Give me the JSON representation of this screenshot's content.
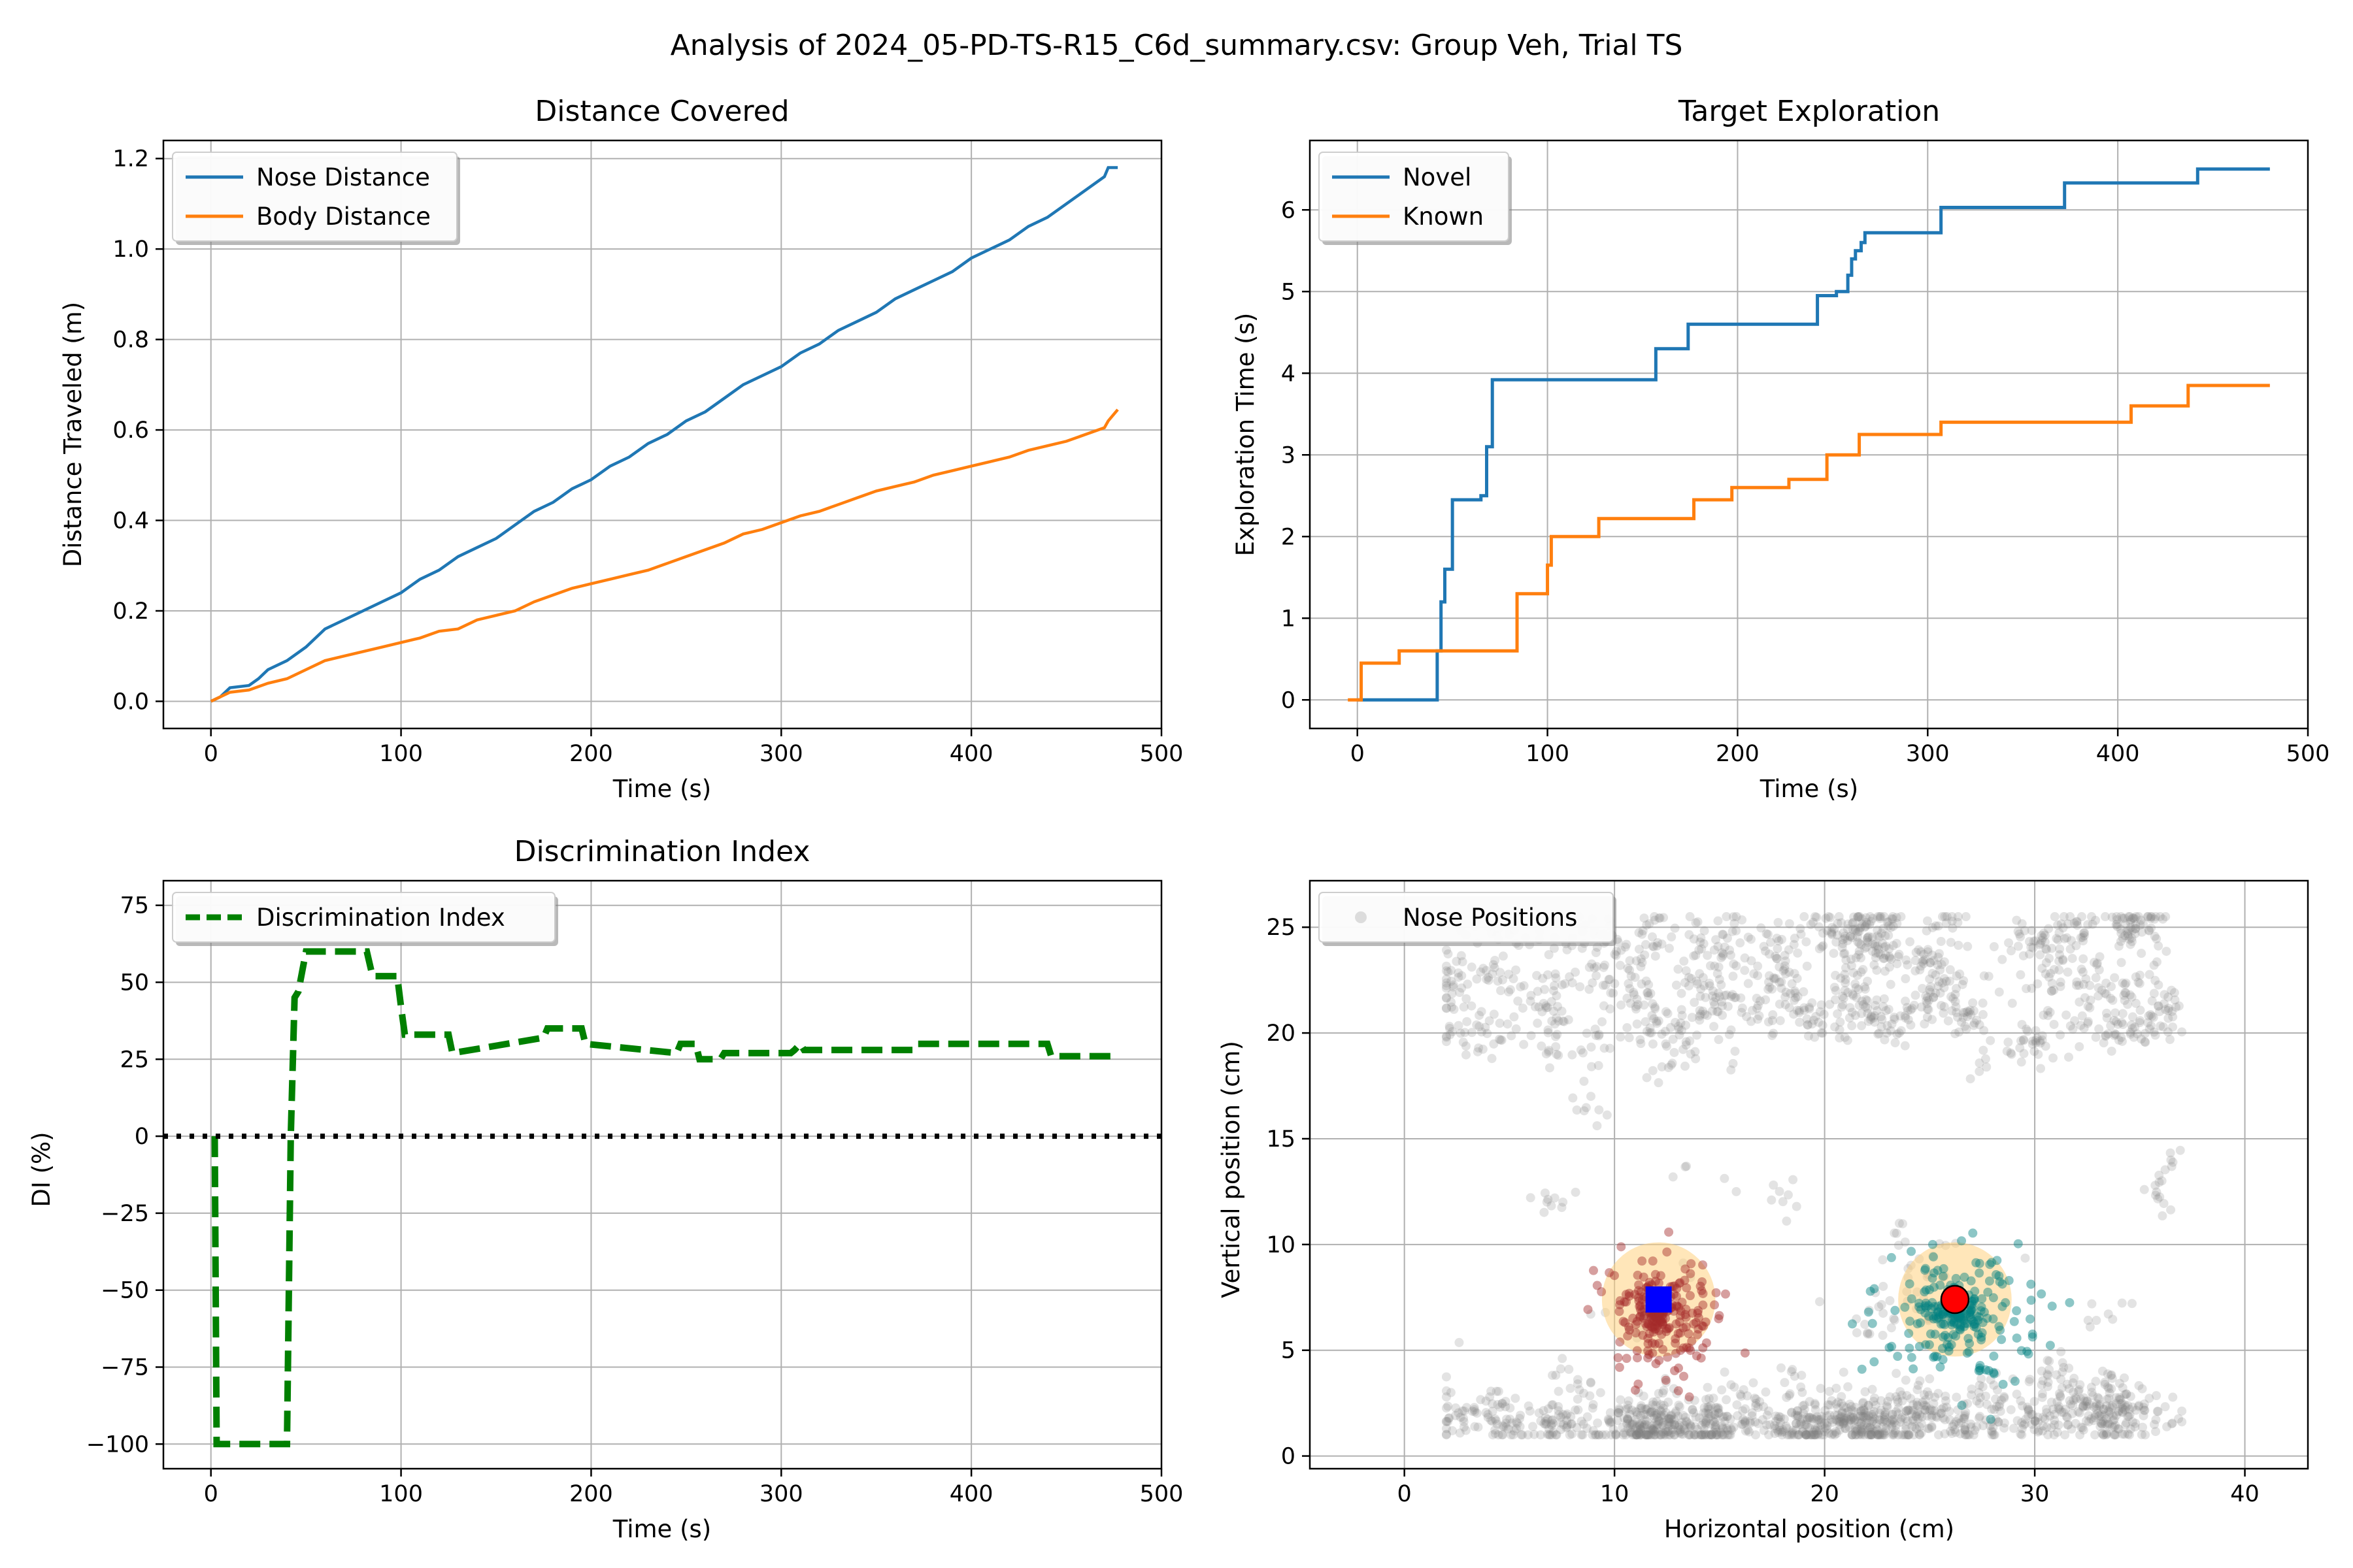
{
  "figure": {
    "suptitle": "Analysis of 2024_05-PD-TS-R15_C6d_summary.csv: Group Veh, Trial TS"
  },
  "colors": {
    "blue": "#1f77b4",
    "orange": "#ff7f0e",
    "green": "#008000",
    "gray": "#808080",
    "darkred": "#a52a2a",
    "teal": "#008080",
    "zone": "#ffd27f",
    "marker_square": "#0000ff",
    "marker_circle": "#ff0000"
  },
  "chart_data": [
    {
      "id": "distance",
      "type": "line",
      "title": "Distance Covered",
      "xlabel": "Time (s)",
      "ylabel": "Distance Traveled (m)",
      "xlim": [
        -25,
        500
      ],
      "ylim": [
        -0.06,
        1.24
      ],
      "xticks": [
        0,
        100,
        200,
        300,
        400,
        500
      ],
      "yticks": [
        0.0,
        0.2,
        0.4,
        0.6,
        0.8,
        1.0,
        1.2
      ],
      "ytick_format": 1,
      "grid": true,
      "legend": "upper-left",
      "series": [
        {
          "name": "Nose Distance",
          "color": "#1f77b4",
          "x": [
            0,
            5,
            10,
            20,
            25,
            30,
            40,
            50,
            60,
            70,
            80,
            90,
            100,
            110,
            120,
            130,
            140,
            150,
            160,
            170,
            180,
            190,
            200,
            210,
            220,
            230,
            240,
            250,
            260,
            270,
            280,
            290,
            300,
            310,
            320,
            330,
            340,
            350,
            360,
            370,
            380,
            390,
            400,
            410,
            420,
            430,
            440,
            450,
            460,
            470,
            472,
            477
          ],
          "y": [
            0.0,
            0.01,
            0.03,
            0.035,
            0.05,
            0.07,
            0.09,
            0.12,
            0.16,
            0.18,
            0.2,
            0.22,
            0.24,
            0.27,
            0.29,
            0.32,
            0.34,
            0.36,
            0.39,
            0.42,
            0.44,
            0.47,
            0.49,
            0.52,
            0.54,
            0.57,
            0.59,
            0.62,
            0.64,
            0.67,
            0.7,
            0.72,
            0.74,
            0.77,
            0.79,
            0.82,
            0.84,
            0.86,
            0.89,
            0.91,
            0.93,
            0.95,
            0.98,
            1.0,
            1.02,
            1.05,
            1.07,
            1.1,
            1.13,
            1.16,
            1.18,
            1.18
          ]
        },
        {
          "name": "Body Distance",
          "color": "#ff7f0e",
          "x": [
            0,
            10,
            20,
            30,
            40,
            50,
            60,
            70,
            80,
            90,
            100,
            110,
            120,
            130,
            140,
            150,
            160,
            170,
            180,
            190,
            200,
            210,
            220,
            230,
            240,
            250,
            260,
            270,
            280,
            290,
            300,
            310,
            320,
            330,
            340,
            350,
            360,
            370,
            380,
            390,
            400,
            410,
            420,
            430,
            440,
            450,
            460,
            470,
            472,
            477
          ],
          "y": [
            0.0,
            0.02,
            0.025,
            0.04,
            0.05,
            0.07,
            0.09,
            0.1,
            0.11,
            0.12,
            0.13,
            0.14,
            0.155,
            0.16,
            0.18,
            0.19,
            0.2,
            0.22,
            0.235,
            0.25,
            0.26,
            0.27,
            0.28,
            0.29,
            0.305,
            0.32,
            0.335,
            0.35,
            0.37,
            0.38,
            0.395,
            0.41,
            0.42,
            0.435,
            0.45,
            0.465,
            0.475,
            0.485,
            0.5,
            0.51,
            0.52,
            0.53,
            0.54,
            0.555,
            0.565,
            0.575,
            0.59,
            0.605,
            0.62,
            0.645
          ]
        }
      ]
    },
    {
      "id": "exploration",
      "type": "line",
      "title": "Target Exploration",
      "xlabel": "Time (s)",
      "ylabel": "Exploration Time (s)",
      "xlim": [
        -25,
        500
      ],
      "ylim": [
        -0.35,
        6.85
      ],
      "xticks": [
        0,
        100,
        200,
        300,
        400,
        500
      ],
      "yticks": [
        0,
        1,
        2,
        3,
        4,
        5,
        6
      ],
      "ytick_format": 0,
      "grid": true,
      "legend": "upper-left",
      "series": [
        {
          "name": "Novel",
          "color": "#1f77b4",
          "step": true,
          "x": [
            0,
            40,
            42,
            44,
            46,
            50,
            55,
            58,
            65,
            68,
            71,
            155,
            157,
            172,
            174,
            240,
            242,
            250,
            252,
            258,
            260,
            262,
            265,
            267,
            305,
            307,
            370,
            372,
            440,
            442,
            480
          ],
          "y": [
            0,
            0,
            0.6,
            1.2,
            1.6,
            2.45,
            2.45,
            2.45,
            2.5,
            3.1,
            3.92,
            3.92,
            4.3,
            4.3,
            4.6,
            4.6,
            4.95,
            4.95,
            5.0,
            5.2,
            5.4,
            5.5,
            5.6,
            5.72,
            5.72,
            6.03,
            6.03,
            6.33,
            6.33,
            6.5,
            6.5
          ]
        },
        {
          "name": "Known",
          "color": "#ff7f0e",
          "step": true,
          "x": [
            -5,
            0,
            2,
            20,
            22,
            82,
            84,
            98,
            100,
            102,
            125,
            127,
            175,
            177,
            195,
            197,
            210,
            212,
            225,
            227,
            245,
            247,
            262,
            264,
            305,
            307,
            405,
            407,
            435,
            437,
            480
          ],
          "y": [
            0,
            0,
            0.45,
            0.45,
            0.6,
            0.6,
            1.3,
            1.3,
            1.65,
            2.0,
            2.0,
            2.22,
            2.22,
            2.45,
            2.45,
            2.6,
            2.6,
            2.6,
            2.6,
            2.7,
            2.7,
            3.0,
            3.0,
            3.25,
            3.25,
            3.4,
            3.4,
            3.6,
            3.6,
            3.85,
            3.85
          ]
        }
      ]
    },
    {
      "id": "di",
      "type": "line",
      "title": "Discrimination Index",
      "xlabel": "Time (s)",
      "ylabel": "DI (%)",
      "xlim": [
        -25,
        500
      ],
      "ylim": [
        -108,
        83
      ],
      "xticks": [
        0,
        100,
        200,
        300,
        400,
        500
      ],
      "yticks": [
        -100,
        -75,
        -50,
        -25,
        0,
        25,
        50,
        75
      ],
      "ytick_format": 0,
      "grid": true,
      "legend": "upper-left",
      "series": [
        {
          "name": "Discrimination Index",
          "color": "#008000",
          "dashed": true,
          "x": [
            2,
            3,
            40,
            42,
            44,
            46,
            50,
            55,
            82,
            85,
            98,
            100,
            102,
            125,
            127,
            175,
            177,
            195,
            197,
            245,
            247,
            255,
            257,
            268,
            270,
            305,
            307,
            310,
            312,
            370,
            372,
            440,
            442,
            477
          ],
          "y": [
            0,
            -100,
            -100,
            0,
            45,
            47,
            60,
            60,
            60,
            52,
            52,
            42,
            33,
            33,
            27,
            32,
            35,
            35,
            30,
            27,
            30,
            30,
            25,
            25,
            27,
            27,
            28,
            30,
            28,
            28,
            30,
            30,
            26,
            26
          ]
        },
        {
          "name": "",
          "color": "#000000",
          "dotted": true,
          "x": [
            -25,
            500
          ],
          "y": [
            0,
            0
          ]
        }
      ]
    },
    {
      "id": "positions",
      "type": "scatter",
      "xlabel": "Horizontal position (cm)",
      "ylabel": "Vertical position (cm)",
      "xlim": [
        -4.5,
        43
      ],
      "ylim": [
        -0.6,
        27.2
      ],
      "xticks": [
        0,
        10,
        20,
        30,
        40
      ],
      "yticks": [
        0,
        5,
        10,
        15,
        20,
        25
      ],
      "ytick_format": 0,
      "grid": true,
      "legend": "upper-left",
      "series_name": "Nose Positions",
      "zones": [
        {
          "x": 12.1,
          "y": 7.4,
          "r": 2.7
        },
        {
          "x": 26.2,
          "y": 7.4,
          "r": 2.7
        }
      ],
      "markers": [
        {
          "shape": "square",
          "x": 12.1,
          "y": 7.4
        },
        {
          "shape": "circle",
          "x": 26.2,
          "y": 7.4
        }
      ],
      "arena": {
        "xmin": 2.0,
        "xmax": 37.0,
        "ymin": 1.0,
        "ymax": 25.5
      },
      "clusters": [
        {
          "color": "darkred",
          "cx": 12.1,
          "cy": 7.4,
          "spread": 3.2
        },
        {
          "color": "teal",
          "cx": 26.2,
          "cy": 7.4,
          "spread": 3.6
        }
      ]
    }
  ]
}
